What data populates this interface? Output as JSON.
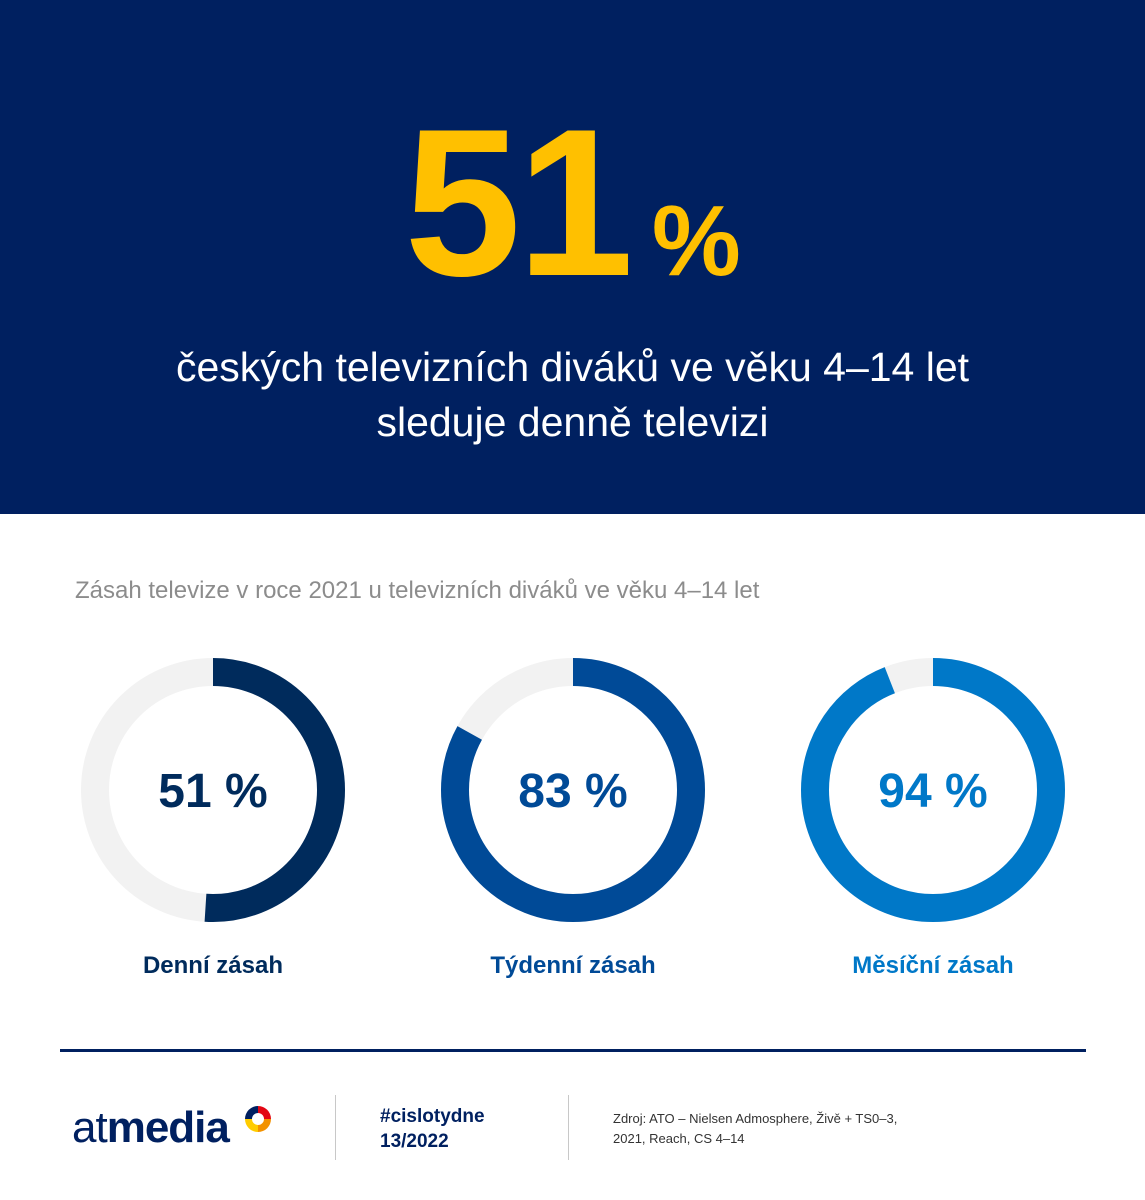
{
  "hero": {
    "number": "51",
    "percent": "%",
    "line1": "českých televizních diváků ve věku 4–14 let",
    "line2": "sleduje denně televizi"
  },
  "subtitle": "Zásah televize v roce 2021 u televizních diváků ve věku 4–14 let",
  "chart_data": {
    "type": "pie",
    "title": "Zásah televize v roce 2021 u televizních diváků ve věku 4–14 let",
    "rings": [
      {
        "label": "Denní zásah",
        "value": 51,
        "display": "51 %",
        "color": "#002B5C"
      },
      {
        "label": "Týdenní zásah",
        "value": 83,
        "display": "83 %",
        "color": "#004A97"
      },
      {
        "label": "Měsíční zásah",
        "value": 94,
        "display": "94 %",
        "color": "#0078C8"
      }
    ],
    "track_color": "#F2F2F2",
    "max": 100
  },
  "footer": {
    "logo_at": "at",
    "logo_media": "media",
    "hashtag": "#cislotydne",
    "issue": "13/2022",
    "source_line1": "Zdroj: ATO – Nielsen Admosphere, Živě + TS0–3,",
    "source_line2": "2021, Reach, CS 4–14"
  },
  "colors": {
    "navy": "#002060",
    "accent": "#FFC000"
  }
}
